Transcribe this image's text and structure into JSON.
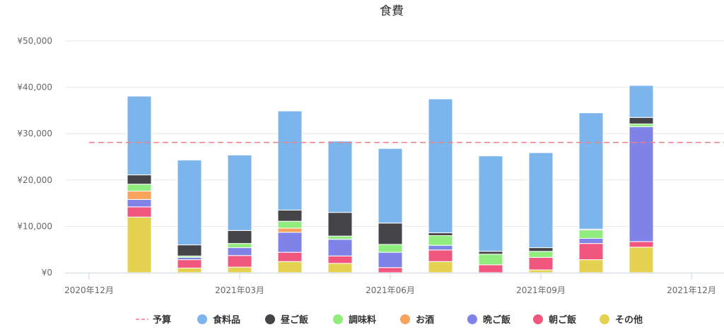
{
  "chart_data": {
    "type": "bar",
    "stacked": true,
    "title": "食費",
    "xlabel": "",
    "ylabel": "",
    "ylim": [
      0,
      50000
    ],
    "y_ticks": [
      "¥0",
      "¥10,000",
      "¥20,000",
      "¥30,000",
      "¥40,000",
      "¥50,000"
    ],
    "x_ticks": [
      "2020年12月",
      "2021年03月",
      "2021年06月",
      "2021年09月",
      "2021年12月"
    ],
    "categories": [
      "2020-12",
      "2021-01",
      "2021-02",
      "2021-03",
      "2021-04",
      "2021-05",
      "2021-06",
      "2021-07",
      "2021-08",
      "2021-09",
      "2021-10",
      "2021-11",
      "2021-12"
    ],
    "grid": true,
    "legend": "bottom",
    "budget": {
      "name": "予算",
      "value": 28100,
      "color": "#f08080"
    },
    "series": [
      {
        "name": "その他",
        "color": "#e3d14f",
        "values": [
          0,
          12000,
          1000,
          1200,
          2400,
          2000,
          0,
          2400,
          0,
          600,
          2800,
          5500,
          0
        ]
      },
      {
        "name": "朝ご飯",
        "color": "#f1567e",
        "values": [
          0,
          2200,
          1800,
          2500,
          2000,
          1600,
          1100,
          2500,
          1700,
          2700,
          3500,
          1200,
          0
        ]
      },
      {
        "name": "晩ご飯",
        "color": "#7f83e8",
        "values": [
          0,
          1600,
          500,
          1700,
          4300,
          3600,
          3300,
          1000,
          0,
          0,
          1100,
          24800,
          0
        ]
      },
      {
        "name": "お酒",
        "color": "#f7a35c",
        "values": [
          0,
          1800,
          0,
          0,
          900,
          0,
          0,
          0,
          0,
          0,
          0,
          0,
          0
        ]
      },
      {
        "name": "調味料",
        "color": "#90ed7d",
        "values": [
          0,
          1500,
          300,
          900,
          1500,
          700,
          1700,
          2100,
          2300,
          1300,
          1800,
          600,
          0
        ]
      },
      {
        "name": "昼ご飯",
        "color": "#434348",
        "values": [
          0,
          2000,
          2400,
          2800,
          2400,
          5100,
          4600,
          600,
          600,
          800,
          200,
          1400,
          0
        ]
      },
      {
        "name": "食料品",
        "color": "#7cb5ec",
        "values": [
          0,
          17000,
          18300,
          16300,
          21400,
          15400,
          16100,
          28900,
          20600,
          20500,
          25100,
          6900,
          0
        ]
      }
    ],
    "legend_order": [
      "予算",
      "食料品",
      "昼ご飯",
      "調味料",
      "お酒",
      "晩ご飯",
      "朝ご飯",
      "その他"
    ]
  }
}
